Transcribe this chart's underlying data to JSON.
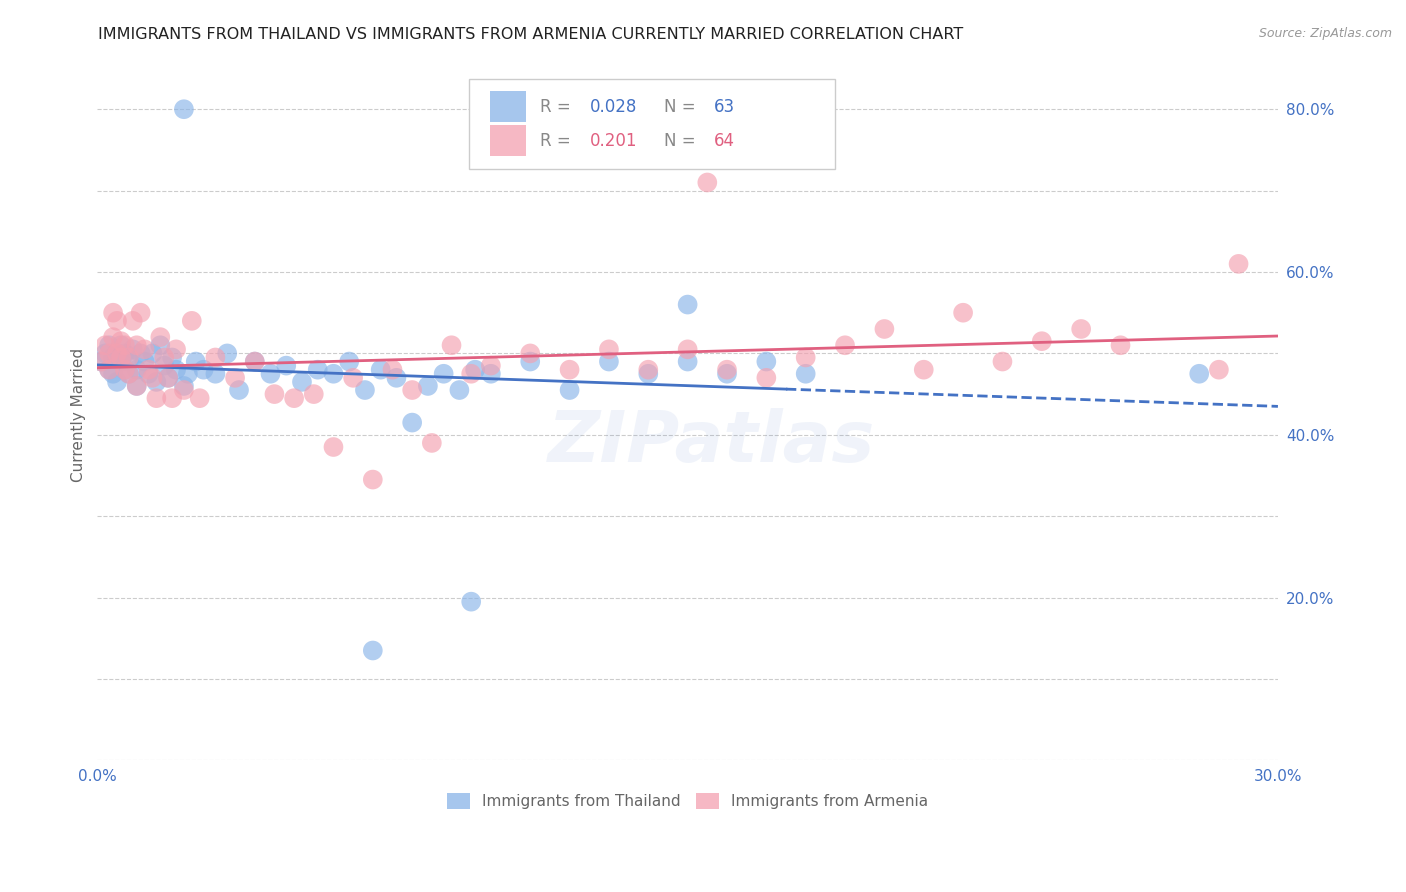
{
  "title": "IMMIGRANTS FROM THAILAND VS IMMIGRANTS FROM ARMENIA CURRENTLY MARRIED CORRELATION CHART",
  "source": "Source: ZipAtlas.com",
  "ylabel": "Currently Married",
  "xlim": [
    0.0,
    0.3
  ],
  "ylim": [
    0.0,
    0.85
  ],
  "x_ticks": [
    0.0,
    0.05,
    0.1,
    0.15,
    0.2,
    0.25,
    0.3
  ],
  "x_tick_labels": [
    "0.0%",
    "",
    "",
    "",
    "",
    "",
    "30.0%"
  ],
  "y_ticks": [
    0.0,
    0.1,
    0.2,
    0.3,
    0.4,
    0.5,
    0.6,
    0.7,
    0.8
  ],
  "y_tick_labels_right": [
    "",
    "",
    "20.0%",
    "",
    "40.0%",
    "",
    "60.0%",
    "",
    "80.0%"
  ],
  "color_thailand": "#89b4e8",
  "color_armenia": "#f4a0b0",
  "color_trendline_thailand": "#4472c4",
  "color_trendline_armenia": "#e06080",
  "color_axis": "#4472c4",
  "grid_color": "#cccccc",
  "watermark": "ZIPatlas",
  "thailand_x": [
    0.001,
    0.002,
    0.003,
    0.003,
    0.004,
    0.004,
    0.005,
    0.005,
    0.006,
    0.006,
    0.007,
    0.007,
    0.008,
    0.008,
    0.009,
    0.01,
    0.01,
    0.011,
    0.012,
    0.013,
    0.014,
    0.015,
    0.016,
    0.017,
    0.018,
    0.019,
    0.02,
    0.022,
    0.023,
    0.025,
    0.027,
    0.03,
    0.033,
    0.036,
    0.04,
    0.044,
    0.048,
    0.052,
    0.056,
    0.06,
    0.064,
    0.068,
    0.072,
    0.076,
    0.08,
    0.084,
    0.088,
    0.092,
    0.096,
    0.1,
    0.11,
    0.12,
    0.13,
    0.14,
    0.15,
    0.16,
    0.17,
    0.18,
    0.022,
    0.095,
    0.07,
    0.28,
    0.15
  ],
  "thailand_y": [
    0.49,
    0.5,
    0.48,
    0.51,
    0.475,
    0.495,
    0.5,
    0.465,
    0.49,
    0.51,
    0.48,
    0.5,
    0.475,
    0.49,
    0.505,
    0.48,
    0.46,
    0.5,
    0.49,
    0.475,
    0.5,
    0.465,
    0.51,
    0.485,
    0.47,
    0.495,
    0.48,
    0.46,
    0.475,
    0.49,
    0.48,
    0.475,
    0.5,
    0.455,
    0.49,
    0.475,
    0.485,
    0.465,
    0.48,
    0.475,
    0.49,
    0.455,
    0.48,
    0.47,
    0.415,
    0.46,
    0.475,
    0.455,
    0.48,
    0.475,
    0.49,
    0.455,
    0.49,
    0.475,
    0.49,
    0.475,
    0.49,
    0.475,
    0.8,
    0.195,
    0.135,
    0.475,
    0.56
  ],
  "armenia_x": [
    0.001,
    0.002,
    0.003,
    0.003,
    0.004,
    0.004,
    0.005,
    0.005,
    0.006,
    0.006,
    0.007,
    0.007,
    0.008,
    0.008,
    0.009,
    0.01,
    0.01,
    0.011,
    0.012,
    0.013,
    0.014,
    0.015,
    0.016,
    0.017,
    0.018,
    0.019,
    0.02,
    0.022,
    0.024,
    0.026,
    0.03,
    0.035,
    0.04,
    0.045,
    0.05,
    0.055,
    0.06,
    0.065,
    0.07,
    0.075,
    0.08,
    0.085,
    0.09,
    0.095,
    0.1,
    0.11,
    0.12,
    0.13,
    0.14,
    0.15,
    0.16,
    0.17,
    0.18,
    0.19,
    0.2,
    0.21,
    0.22,
    0.23,
    0.24,
    0.25,
    0.155,
    0.26,
    0.285,
    0.29
  ],
  "armenia_y": [
    0.49,
    0.51,
    0.5,
    0.48,
    0.52,
    0.55,
    0.54,
    0.5,
    0.515,
    0.495,
    0.48,
    0.51,
    0.495,
    0.475,
    0.54,
    0.51,
    0.46,
    0.55,
    0.505,
    0.48,
    0.47,
    0.445,
    0.52,
    0.495,
    0.47,
    0.445,
    0.505,
    0.455,
    0.54,
    0.445,
    0.495,
    0.47,
    0.49,
    0.45,
    0.445,
    0.45,
    0.385,
    0.47,
    0.345,
    0.48,
    0.455,
    0.39,
    0.51,
    0.475,
    0.485,
    0.5,
    0.48,
    0.505,
    0.48,
    0.505,
    0.48,
    0.47,
    0.495,
    0.51,
    0.53,
    0.48,
    0.55,
    0.49,
    0.515,
    0.53,
    0.71,
    0.51,
    0.48,
    0.61
  ],
  "trendline_x_solid_end_thailand": 0.175,
  "trendline_x_dashed_start_thailand": 0.175
}
